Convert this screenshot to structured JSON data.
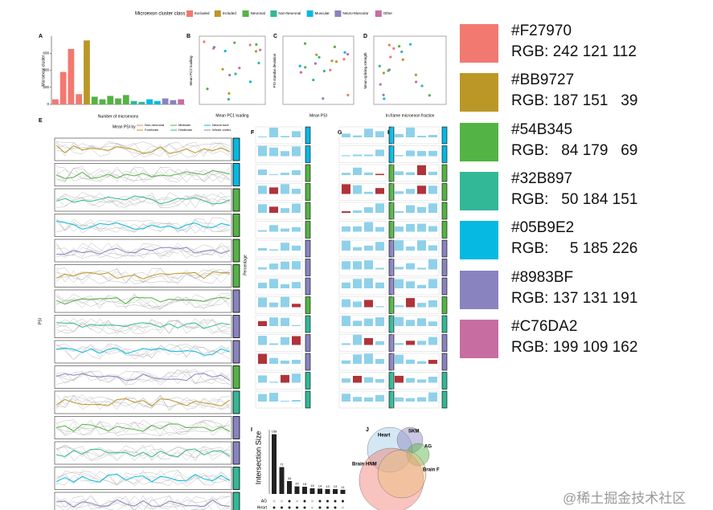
{
  "figure": {
    "legend_title": "Microexon cluster class",
    "legend": [
      {
        "label": "Excluded",
        "color": "#F27970"
      },
      {
        "label": "Included",
        "color": "#BB9727"
      },
      {
        "label": "Neuronal",
        "color": "#54B345"
      },
      {
        "label": "Non-Neuronal",
        "color": "#32B897"
      },
      {
        "label": "Muscular",
        "color": "#05B9E2"
      },
      {
        "label": "Neuro-Muscular",
        "color": "#8983BF"
      },
      {
        "label": "Other",
        "color": "#C76DA2"
      }
    ],
    "panels": [
      "A",
      "B",
      "C",
      "D",
      "E",
      "F",
      "G",
      "H",
      "I",
      "J"
    ],
    "panel_a": {
      "type": "bar",
      "y_label": "Microexon cluster",
      "x_label": "Number of microexons",
      "values": [
        60,
        380,
        650,
        120,
        750,
        90,
        60,
        100,
        70,
        110,
        40,
        30,
        60,
        40,
        70,
        50,
        60
      ],
      "colors": [
        "#F27970",
        "#F27970",
        "#F27970",
        "#F27970",
        "#BB9727",
        "#54B345",
        "#54B345",
        "#54B345",
        "#54B345",
        "#54B345",
        "#32B897",
        "#32B897",
        "#05B9E2",
        "#05B9E2",
        "#8983BF",
        "#8983BF",
        "#C76DA2"
      ],
      "ylim": [
        0,
        800
      ],
      "yticks": [
        0,
        200,
        400,
        600
      ]
    },
    "panel_b": {
      "x_label": "Mean PC1 loading",
      "y_label": "Mean PC2 loading"
    },
    "panel_c": {
      "x_label": "Mean PSI",
      "y_label": "PSI standar deviation"
    },
    "panel_d": {
      "x_label": "In-frame microexon fraction",
      "y_label": "Mean splicing strength"
    },
    "panel_e": {
      "title": "Mean PSI by",
      "legend": [
        "Non-neuronal",
        "Forebrain",
        "Midbrain",
        "Hindbrain",
        "Neural tube",
        "Whole cortex"
      ],
      "y_label": "PSI"
    },
    "panel_f": {
      "y_label": "Percentage"
    },
    "panel_i": {
      "type": "bar",
      "y_label": "Intersection Size",
      "values": [
        158,
        71,
        34,
        20,
        19,
        15,
        14,
        13,
        13,
        11
      ],
      "ylim": [
        0,
        170
      ],
      "sets": [
        "AG",
        "Heart"
      ]
    },
    "panel_j": {
      "sets": [
        "Heart",
        "SKM",
        "AG",
        "Brain HNM",
        "Brain F"
      ]
    }
  },
  "palette": [
    {
      "hex": "#F27970",
      "rgb": "RGB: 242 121 112"
    },
    {
      "hex": "#BB9727",
      "rgb": "RGB: 187 151   39"
    },
    {
      "hex": "#54B345",
      "rgb": "RGB:   84 179   69"
    },
    {
      "hex": "#32B897",
      "rgb": "RGB:   50 184 151"
    },
    {
      "hex": "#05B9E2",
      "rgb": "RGB:     5 185 226"
    },
    {
      "hex": "#8983BF",
      "rgb": "RGB: 137 131 191"
    },
    {
      "hex": "#C76DA2",
      "rgb": "RGB: 199 109 162"
    }
  ],
  "watermark": "@稀土掘金技术社区"
}
